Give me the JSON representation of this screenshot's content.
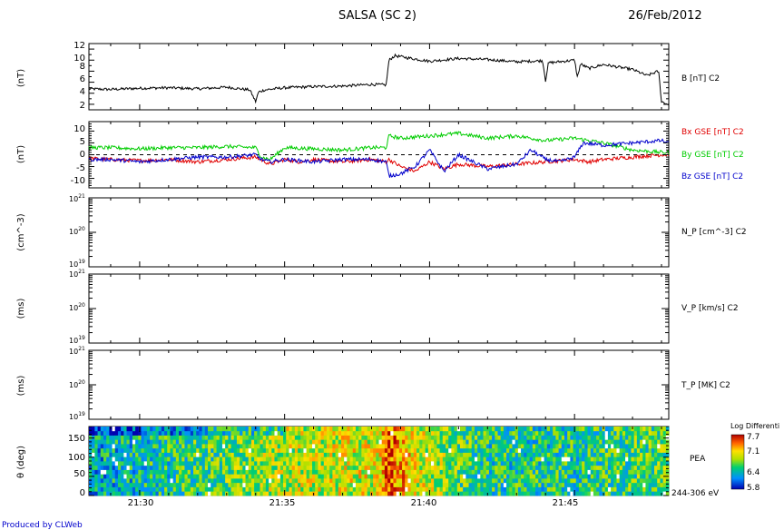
{
  "header": {
    "title": "SALSA (SC 2)",
    "date": "26/Feb/2012"
  },
  "footer": {
    "credit": "Produced by CLWeb"
  },
  "x_axis": {
    "range_minutes": [
      28.25,
      48.25
    ],
    "ticks": [
      {
        "value": 30,
        "label": "21:30"
      },
      {
        "value": 35,
        "label": "21:35"
      },
      {
        "value": 40,
        "label": "21:40"
      },
      {
        "value": 45,
        "label": "21:45"
      }
    ]
  },
  "colors": {
    "Bx": "#e00000",
    "By": "#00cc00",
    "Bz": "#0000cc",
    "link": "#0000cc"
  },
  "panels": {
    "b_total": {
      "ylabel": "(nT)",
      "legend": "B [nT] C2",
      "ylim": [
        1,
        13
      ],
      "ticks": [
        "2",
        "4",
        "6",
        "8",
        "10",
        "12"
      ]
    },
    "b_gse": {
      "ylabel": "(nT)",
      "legends": [
        "Bx GSE [nT] C2",
        "By GSE [nT] C2",
        "Bz GSE [nT] C2"
      ],
      "ylim": [
        -14,
        14
      ],
      "ticks": [
        "-10",
        "-5",
        "0",
        "5",
        "10"
      ]
    },
    "np": {
      "ylabel": "(cm^-3)",
      "legend": "N_P [cm^-3] C2",
      "tick_base": [
        "10",
        "10",
        "10"
      ],
      "tick_exp": [
        "21",
        "20",
        "19"
      ]
    },
    "vp": {
      "ylabel": "(ms)",
      "legend": "V_P [km/s] C2",
      "tick_base": [
        "10",
        "10",
        "10"
      ],
      "tick_exp": [
        "21",
        "20",
        "19"
      ]
    },
    "tp": {
      "ylabel": "(ms)",
      "legend": "T_P [MK] C2",
      "tick_base": [
        "10",
        "10",
        "10"
      ],
      "tick_exp": [
        "21",
        "20",
        "19"
      ]
    },
    "pea": {
      "ylabel": "θ (deg)",
      "legend": "PEA",
      "energy": "244-306 eV",
      "ticks": [
        "0",
        "50",
        "100",
        "150"
      ],
      "colorbar_title": "Log Differenti",
      "colorbar_ticks": [
        "7.7",
        "7.1",
        "6.4",
        "5.8"
      ]
    }
  },
  "chart_data": [
    {
      "type": "line",
      "series": [
        {
          "name": "B [nT] C2",
          "x": [
            28.25,
            29,
            30,
            31,
            32,
            33,
            33.8,
            34.0,
            34.1,
            34.3,
            35,
            36,
            37,
            38,
            38.5,
            38.6,
            38.8,
            39.5,
            40,
            41,
            42,
            43,
            43.9,
            44,
            44.1,
            45,
            45.1,
            45.2,
            45.5,
            46,
            47,
            47.5,
            47.9,
            48.0,
            48.2
          ],
          "y": [
            4.8,
            4.7,
            4.9,
            5.0,
            4.8,
            5.1,
            4.6,
            2.5,
            4.2,
            4.6,
            5.0,
            5.2,
            5.3,
            5.6,
            5.5,
            10.0,
            10.8,
            10.2,
            9.8,
            10.3,
            10.1,
            9.7,
            9.9,
            6.3,
            9.5,
            10.0,
            6.8,
            9.3,
            8.5,
            9.2,
            8.3,
            7.2,
            8.0,
            2.5,
            2.0
          ]
        }
      ],
      "ylim": [
        1,
        13
      ]
    },
    {
      "type": "line",
      "series": [
        {
          "name": "Bx GSE [nT] C2",
          "x": [
            28.25,
            29,
            30,
            31,
            32,
            33,
            34,
            34.5,
            35,
            35.5,
            36,
            37,
            38,
            38.5,
            38.6,
            39,
            39.5,
            40,
            40.5,
            41,
            42,
            43,
            44,
            45,
            45.5,
            46,
            47,
            48,
            48.2
          ],
          "y": [
            -1.5,
            -2,
            -2.5,
            -2,
            -3,
            -2,
            -1,
            -4,
            -2,
            -3,
            -2,
            -3,
            -2,
            -3,
            -2,
            -5,
            -7,
            -3,
            -6,
            -4,
            -5,
            -4,
            -3,
            -2,
            -3,
            -2,
            -1,
            0,
            0
          ]
        },
        {
          "name": "By GSE [nT] C2",
          "x": [
            28.25,
            29,
            30,
            31,
            32,
            33,
            34,
            34.2,
            34.5,
            35,
            36,
            37,
            38,
            38.5,
            38.6,
            39,
            40,
            41,
            42,
            43,
            44,
            45,
            46,
            47,
            48,
            48.2
          ],
          "y": [
            3,
            3,
            2.5,
            3,
            3,
            3.5,
            3,
            -1,
            -2,
            3,
            2.5,
            2,
            3,
            3,
            8,
            7,
            8,
            9,
            7,
            8,
            6,
            7,
            5,
            2,
            1,
            1
          ]
        },
        {
          "name": "Bz GSE [nT] C2",
          "x": [
            28.25,
            29,
            30,
            31,
            32,
            33,
            34,
            34.2,
            34.5,
            35,
            36,
            37,
            38,
            38.5,
            38.6,
            39,
            39.5,
            40,
            40.5,
            41,
            42,
            43,
            43.5,
            44,
            44.5,
            45,
            45.3,
            46,
            47,
            48,
            48.2
          ],
          "y": [
            -2,
            -2,
            -3,
            -2,
            -1,
            -1,
            0,
            -2,
            -3,
            -2,
            -3,
            -2,
            -2,
            -3,
            -9,
            -8,
            -5,
            2,
            -7,
            0,
            -6,
            -4,
            2,
            -2,
            -3,
            -1,
            5,
            4,
            5,
            6,
            5
          ]
        }
      ],
      "ylim": [
        -14,
        14
      ]
    },
    {
      "type": "heatmap",
      "x_range": [
        28.25,
        48.25
      ],
      "y_range_deg": [
        0,
        180
      ],
      "color_range": [
        5.8,
        7.7
      ],
      "time_profile": [
        {
          "x": 28.25,
          "v": 6.3
        },
        {
          "x": 31.0,
          "v": 6.5
        },
        {
          "x": 33.0,
          "v": 6.7
        },
        {
          "x": 35.0,
          "v": 6.9
        },
        {
          "x": 38.3,
          "v": 7.0
        },
        {
          "x": 38.6,
          "v": 7.5
        },
        {
          "x": 39.5,
          "v": 7.0
        },
        {
          "x": 42.0,
          "v": 6.5
        },
        {
          "x": 45.0,
          "v": 6.5
        },
        {
          "x": 48.25,
          "v": 6.7
        }
      ]
    }
  ]
}
